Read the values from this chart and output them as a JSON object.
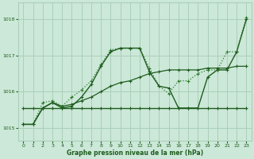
{
  "title": "Graphe pression niveau de la mer (hPa)",
  "background_color": "#cce8d8",
  "grid_color": "#aacfba",
  "line_color_dark": "#1e5c1e",
  "line_color_dotted": "#2e7a2e",
  "ylim": [
    1014.65,
    1018.45
  ],
  "yticks": [
    1015,
    1016,
    1017,
    1018
  ],
  "xlim": [
    -0.5,
    23.5
  ],
  "xticks": [
    0,
    1,
    2,
    3,
    4,
    5,
    6,
    7,
    8,
    9,
    10,
    11,
    12,
    13,
    14,
    15,
    16,
    17,
    18,
    19,
    20,
    21,
    22,
    23
  ],
  "series_dotted_x": [
    0,
    1,
    2,
    3,
    4,
    5,
    6,
    7,
    8,
    9,
    10,
    11,
    12,
    13,
    14,
    15,
    16,
    17,
    18,
    19,
    20,
    21,
    22,
    23
  ],
  "series_dotted_y": [
    1015.1,
    1015.1,
    1015.7,
    1015.75,
    1015.6,
    1015.85,
    1016.05,
    1016.3,
    1016.75,
    1017.15,
    1017.2,
    1017.2,
    1017.2,
    1016.65,
    1016.15,
    1015.95,
    1016.3,
    1016.3,
    1016.5,
    1016.6,
    1016.6,
    1017.1,
    1017.1,
    1018.05
  ],
  "series_flat_x": [
    0,
    1,
    2,
    3,
    4,
    5,
    6,
    7,
    8,
    9,
    10,
    11,
    12,
    13,
    14,
    15,
    16,
    17,
    18,
    19,
    20,
    21,
    22,
    23
  ],
  "series_flat_y": [
    1015.55,
    1015.55,
    1015.55,
    1015.55,
    1015.55,
    1015.55,
    1015.55,
    1015.55,
    1015.55,
    1015.55,
    1015.55,
    1015.55,
    1015.55,
    1015.55,
    1015.55,
    1015.55,
    1015.55,
    1015.55,
    1015.55,
    1015.55,
    1015.55,
    1015.55,
    1015.55,
    1015.55
  ],
  "series_diag_x": [
    0,
    1,
    2,
    3,
    4,
    5,
    6,
    7,
    8,
    9,
    10,
    11,
    12,
    13,
    14,
    15,
    16,
    17,
    18,
    19,
    20,
    21,
    22,
    23
  ],
  "series_diag_y": [
    1015.1,
    1015.1,
    1015.55,
    1015.7,
    1015.6,
    1015.65,
    1015.75,
    1015.85,
    1016.0,
    1016.15,
    1016.25,
    1016.3,
    1016.4,
    1016.5,
    1016.55,
    1016.6,
    1016.6,
    1016.6,
    1016.6,
    1016.65,
    1016.65,
    1016.65,
    1016.7,
    1016.7
  ],
  "series_solid_peak_x": [
    0,
    1,
    2,
    3,
    4,
    5,
    6,
    7,
    8,
    9,
    10,
    11,
    12,
    13,
    14,
    15,
    16,
    17,
    18,
    19,
    20,
    21,
    22,
    23
  ],
  "series_solid_peak_y": [
    1015.1,
    1015.1,
    1015.55,
    1015.7,
    1015.55,
    1015.6,
    1015.85,
    1016.2,
    1016.7,
    1017.1,
    1017.2,
    1017.2,
    1017.2,
    1016.55,
    1016.15,
    1016.1,
    1015.55,
    1015.55,
    1015.55,
    1016.4,
    1016.6,
    1016.6,
    1017.1,
    1018.0
  ]
}
